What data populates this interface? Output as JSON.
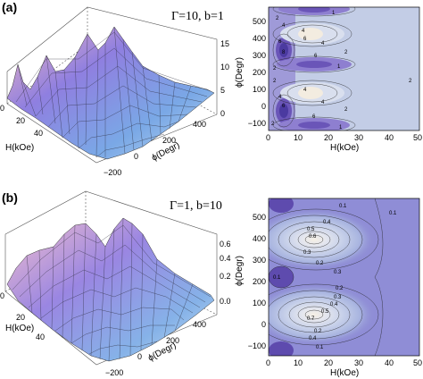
{
  "panels": [
    {
      "label": "(a)",
      "params": "Γ=10, b=1",
      "surface": {
        "z_ticks": [
          "0",
          "5",
          "10",
          "15"
        ],
        "h_ticks": [
          "0",
          "20",
          "40"
        ],
        "phi_ticks": [
          "−200",
          "0",
          "200",
          "400"
        ],
        "h_label": "H(kOe)",
        "phi_label": "ϕ(Degr)"
      },
      "contour": {
        "x_ticks": [
          "0",
          "10",
          "20",
          "30",
          "40",
          "50"
        ],
        "y_ticks": [
          "−100",
          "0",
          "100",
          "200",
          "300",
          "400",
          "500"
        ],
        "xlabel": "H(kOe)",
        "ylabel": "ϕ(Degr)",
        "labels": [
          "2",
          "4",
          "6",
          "8",
          "2",
          "4",
          "6",
          "1",
          "4",
          "6",
          "2",
          "1",
          "2",
          "4",
          "6",
          "2",
          "4",
          "4",
          "2",
          "6",
          "2",
          "1"
        ]
      }
    },
    {
      "label": "(b)",
      "params": "Γ=1, b=10",
      "surface": {
        "z_ticks": [
          "0.0",
          "0.2",
          "0.4",
          "0.6"
        ],
        "h_ticks": [
          "0",
          "20",
          "40"
        ],
        "phi_ticks": [
          "−200",
          "0",
          "200",
          "400"
        ],
        "h_label": "H(kOe)",
        "phi_label": "ϕ(Degr)"
      },
      "contour": {
        "x_ticks": [
          "0",
          "10",
          "20",
          "30",
          "40",
          "50"
        ],
        "y_ticks": [
          "−100",
          "0",
          "100",
          "200",
          "300",
          "400",
          "500"
        ],
        "xlabel": "H(kOe)",
        "ylabel": "ϕ(Degr)",
        "labels": [
          "0.1",
          "0.1",
          "0.4",
          "0.5",
          "0.6",
          "0.3",
          "0.2",
          "0.3",
          "0.1",
          "0.2",
          "0.3",
          "0.4",
          "0.5",
          "0.7",
          "0.2",
          "0.4",
          "0.1"
        ]
      }
    }
  ],
  "colors": {
    "contour_dark": "#6a55b8",
    "contour_mid": "#9a8fd6",
    "contour_light": "#c3cde6",
    "contour_peak": "#f3ece0",
    "surface_blue": "#8a7fdc",
    "surface_pink": "#e9a6b4"
  }
}
